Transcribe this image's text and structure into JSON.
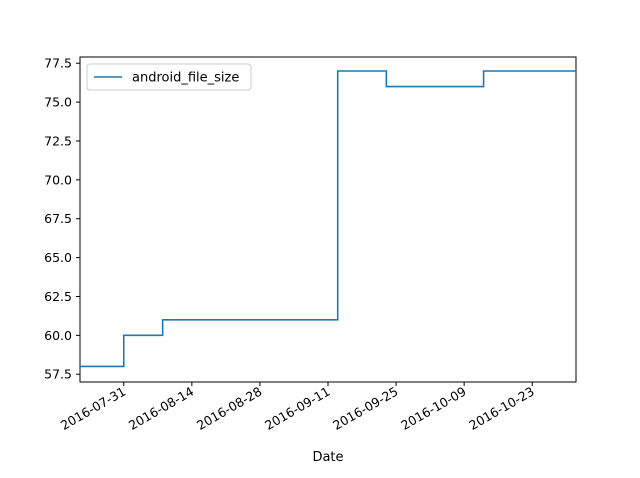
{
  "chart_data": {
    "type": "line",
    "drawstyle": "steps-post",
    "title": "",
    "xlabel": "Date",
    "ylabel": "",
    "x_ticks": [
      "2016-07-31",
      "2016-08-14",
      "2016-08-28",
      "2016-09-11",
      "2016-09-25",
      "2016-10-09",
      "2016-10-23"
    ],
    "y_ticks": [
      "57.5",
      "60.0",
      "62.5",
      "65.0",
      "67.5",
      "70.0",
      "72.5",
      "75.0",
      "77.5"
    ],
    "xlim": [
      "2016-07-22",
      "2016-11-01"
    ],
    "ylim": [
      57.0,
      77.9
    ],
    "grid": false,
    "legend_position": "upper left",
    "series": [
      {
        "name": "android_file_size",
        "color": "#1f77b4",
        "x": [
          "2016-07-22",
          "2016-07-31",
          "2016-08-08",
          "2016-09-13",
          "2016-09-23",
          "2016-10-13",
          "2016-11-01"
        ],
        "y": [
          58.0,
          60.0,
          61.0,
          77.0,
          76.0,
          77.0,
          77.0
        ]
      }
    ]
  }
}
